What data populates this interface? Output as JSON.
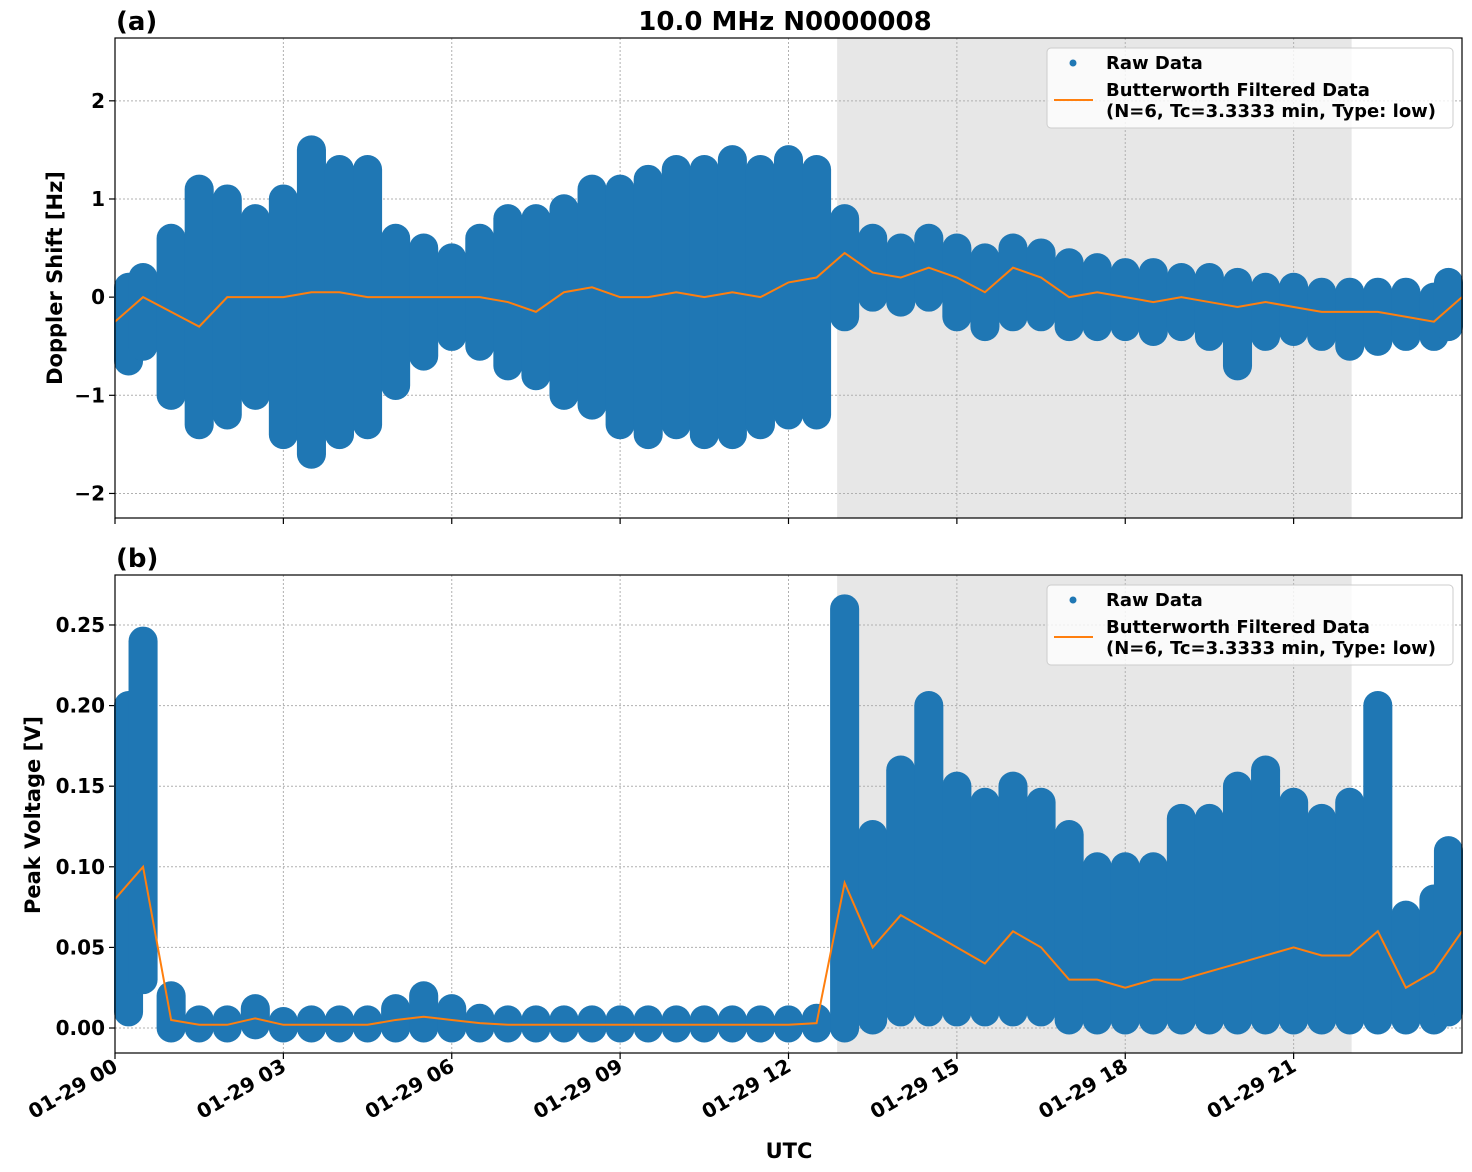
{
  "chart_data": [
    {
      "type": "scatter",
      "panel_label": "(a)",
      "title": "10.0 MHz N0000008",
      "xlabel": "",
      "ylabel": "Doppler Shift [Hz]",
      "ylim": [
        -2.25,
        2.64
      ],
      "yticks": [
        2,
        1,
        0,
        -1,
        -2
      ],
      "ytick_labels": [
        "2",
        "1",
        "0",
        "−1",
        "−2"
      ],
      "xlim": [
        "01-29 00:00",
        "01-30 00:00"
      ],
      "grid": true,
      "legend_placement": "top-right",
      "shaded_region": {
        "start": "12:52",
        "end": "22:02",
        "color": "#e7e7e7"
      },
      "series": [
        {
          "name": "Raw Data",
          "kind": "scatter",
          "color": "#1f77b4",
          "representation": "range per 30 min [min, max]",
          "x": [
            "00:00",
            "00:30",
            "01:00",
            "01:30",
            "02:00",
            "02:30",
            "03:00",
            "03:30",
            "04:00",
            "04:30",
            "05:00",
            "05:30",
            "06:00",
            "06:30",
            "07:00",
            "07:30",
            "08:00",
            "08:30",
            "09:00",
            "09:30",
            "10:00",
            "10:30",
            "11:00",
            "11:30",
            "12:00",
            "12:30",
            "13:00",
            "13:30",
            "14:00",
            "14:30",
            "15:00",
            "15:30",
            "16:00",
            "16:30",
            "17:00",
            "17:30",
            "18:00",
            "18:30",
            "19:00",
            "19:30",
            "20:00",
            "20:30",
            "21:00",
            "21:30",
            "22:00",
            "22:30",
            "23:00",
            "23:30",
            "24:00"
          ],
          "min": [
            -0.65,
            -0.5,
            -1.0,
            -1.3,
            -1.2,
            -1.0,
            -1.4,
            -1.6,
            -1.4,
            -1.3,
            -0.9,
            -0.6,
            -0.4,
            -0.5,
            -0.7,
            -0.8,
            -1.0,
            -1.1,
            -1.3,
            -1.4,
            -1.3,
            -1.4,
            -1.4,
            -1.3,
            -1.2,
            -1.2,
            -0.2,
            0.0,
            -0.05,
            0.0,
            -0.2,
            -0.3,
            -0.2,
            -0.2,
            -0.3,
            -0.3,
            -0.3,
            -0.35,
            -0.3,
            -0.4,
            -0.7,
            -0.4,
            -0.35,
            -0.4,
            -0.5,
            -0.45,
            -0.4,
            -0.4,
            -0.3
          ],
          "max": [
            0.1,
            0.2,
            0.6,
            1.1,
            1.0,
            0.8,
            1.0,
            1.5,
            1.3,
            1.3,
            0.6,
            0.5,
            0.4,
            0.6,
            0.8,
            0.8,
            0.9,
            1.1,
            1.1,
            1.2,
            1.3,
            1.3,
            1.4,
            1.3,
            1.4,
            1.3,
            0.8,
            0.6,
            0.5,
            0.6,
            0.5,
            0.4,
            0.5,
            0.45,
            0.35,
            0.3,
            0.25,
            0.25,
            0.2,
            0.2,
            0.15,
            0.1,
            0.1,
            0.05,
            0.05,
            0.05,
            0.05,
            0.0,
            0.15
          ]
        },
        {
          "name": "Butterworth Filtered Data\n(N=6, Tc=3.3333 min, Type: low)",
          "kind": "line",
          "color": "#ff7f0e",
          "x": [
            "00:00",
            "00:30",
            "01:00",
            "01:30",
            "02:00",
            "02:30",
            "03:00",
            "03:30",
            "04:00",
            "04:30",
            "05:00",
            "05:30",
            "06:00",
            "06:30",
            "07:00",
            "07:30",
            "08:00",
            "08:30",
            "09:00",
            "09:30",
            "10:00",
            "10:30",
            "11:00",
            "11:30",
            "12:00",
            "12:30",
            "13:00",
            "13:30",
            "14:00",
            "14:30",
            "15:00",
            "15:30",
            "16:00",
            "16:30",
            "17:00",
            "17:30",
            "18:00",
            "18:30",
            "19:00",
            "19:30",
            "20:00",
            "20:30",
            "21:00",
            "21:30",
            "22:00",
            "22:30",
            "23:00",
            "23:30",
            "24:00"
          ],
          "y": [
            -0.25,
            0.0,
            -0.15,
            -0.3,
            0.0,
            0.0,
            0.0,
            0.05,
            0.05,
            0.0,
            0.0,
            0.0,
            0.0,
            0.0,
            -0.05,
            -0.15,
            0.05,
            0.1,
            0.0,
            0.0,
            0.05,
            0.0,
            0.05,
            0.0,
            0.15,
            0.2,
            0.45,
            0.25,
            0.2,
            0.3,
            0.2,
            0.05,
            0.3,
            0.2,
            0.0,
            0.05,
            0.0,
            -0.05,
            0.0,
            -0.05,
            -0.1,
            -0.05,
            -0.1,
            -0.15,
            -0.15,
            -0.15,
            -0.2,
            -0.25,
            0.0
          ]
        }
      ],
      "legend": {
        "raw": "Raw Data",
        "filtered_line1": "Butterworth Filtered Data",
        "filtered_line2": "(N=6, Tc=3.3333 min, Type: low)"
      }
    },
    {
      "type": "scatter",
      "panel_label": "(b)",
      "xlabel": "UTC",
      "ylabel": "Peak Voltage [V]",
      "ylim": [
        -0.0155,
        0.281
      ],
      "yticks": [
        0.25,
        0.2,
        0.15,
        0.1,
        0.05,
        0.0
      ],
      "ytick_labels": [
        "0.25",
        "0.20",
        "0.15",
        "0.10",
        "0.05",
        "0.00"
      ],
      "xlim": [
        "01-29 00:00",
        "01-30 00:00"
      ],
      "xtick_labels": [
        "01-29 00",
        "01-29 03",
        "01-29 06",
        "01-29 09",
        "01-29 12",
        "01-29 15",
        "01-29 18",
        "01-29 21"
      ],
      "xtick_times": [
        "00:00",
        "03:00",
        "06:00",
        "09:00",
        "12:00",
        "15:00",
        "18:00",
        "21:00"
      ],
      "grid": true,
      "legend_placement": "top-right",
      "shaded_region": {
        "start": "12:52",
        "end": "22:02",
        "color": "#e7e7e7"
      },
      "series": [
        {
          "name": "Raw Data",
          "kind": "scatter",
          "color": "#1f77b4",
          "representation": "range per 30 min [min, max]",
          "x": [
            "00:00",
            "00:30",
            "01:00",
            "01:30",
            "02:00",
            "02:30",
            "03:00",
            "03:30",
            "04:00",
            "04:30",
            "05:00",
            "05:30",
            "06:00",
            "06:30",
            "07:00",
            "07:30",
            "08:00",
            "08:30",
            "09:00",
            "09:30",
            "10:00",
            "10:30",
            "11:00",
            "11:30",
            "12:00",
            "12:30",
            "13:00",
            "13:30",
            "14:00",
            "14:30",
            "15:00",
            "15:30",
            "16:00",
            "16:30",
            "17:00",
            "17:30",
            "18:00",
            "18:30",
            "19:00",
            "19:30",
            "20:00",
            "20:30",
            "21:00",
            "21:30",
            "22:00",
            "22:30",
            "23:00",
            "23:30",
            "24:00"
          ],
          "min": [
            0.01,
            0.03,
            0.0,
            0.0,
            0.0,
            0.002,
            0.0,
            0.0,
            0.0,
            0.0,
            0.0,
            0.0,
            0.0,
            0.0,
            0.0,
            0.0,
            0.0,
            0.0,
            0.0,
            0.0,
            0.0,
            0.0,
            0.0,
            0.0,
            0.0,
            0.0,
            0.0,
            0.005,
            0.01,
            0.01,
            0.01,
            0.01,
            0.01,
            0.01,
            0.005,
            0.005,
            0.005,
            0.005,
            0.005,
            0.005,
            0.005,
            0.005,
            0.005,
            0.005,
            0.005,
            0.005,
            0.005,
            0.005,
            0.01
          ],
          "max": [
            0.2,
            0.24,
            0.02,
            0.005,
            0.005,
            0.012,
            0.004,
            0.005,
            0.005,
            0.005,
            0.012,
            0.02,
            0.012,
            0.006,
            0.005,
            0.005,
            0.005,
            0.005,
            0.005,
            0.005,
            0.005,
            0.005,
            0.005,
            0.005,
            0.005,
            0.006,
            0.26,
            0.12,
            0.16,
            0.2,
            0.15,
            0.14,
            0.15,
            0.14,
            0.12,
            0.1,
            0.1,
            0.1,
            0.13,
            0.13,
            0.15,
            0.16,
            0.14,
            0.13,
            0.14,
            0.2,
            0.07,
            0.08,
            0.11
          ]
        },
        {
          "name": "Butterworth Filtered Data\n(N=6, Tc=3.3333 min, Type: low)",
          "kind": "line",
          "color": "#ff7f0e",
          "x": [
            "00:00",
            "00:30",
            "01:00",
            "01:30",
            "02:00",
            "02:30",
            "03:00",
            "03:30",
            "04:00",
            "04:30",
            "05:00",
            "05:30",
            "06:00",
            "06:30",
            "07:00",
            "07:30",
            "08:00",
            "08:30",
            "09:00",
            "09:30",
            "10:00",
            "10:30",
            "11:00",
            "11:30",
            "12:00",
            "12:30",
            "13:00",
            "13:30",
            "14:00",
            "14:30",
            "15:00",
            "15:30",
            "16:00",
            "16:30",
            "17:00",
            "17:30",
            "18:00",
            "18:30",
            "19:00",
            "19:30",
            "20:00",
            "20:30",
            "21:00",
            "21:30",
            "22:00",
            "22:30",
            "23:00",
            "23:30",
            "24:00"
          ],
          "y": [
            0.08,
            0.1,
            0.005,
            0.002,
            0.002,
            0.006,
            0.002,
            0.002,
            0.002,
            0.002,
            0.005,
            0.007,
            0.005,
            0.003,
            0.002,
            0.002,
            0.002,
            0.002,
            0.002,
            0.002,
            0.002,
            0.002,
            0.002,
            0.002,
            0.002,
            0.003,
            0.09,
            0.05,
            0.07,
            0.06,
            0.05,
            0.04,
            0.06,
            0.05,
            0.03,
            0.03,
            0.025,
            0.03,
            0.03,
            0.035,
            0.04,
            0.045,
            0.05,
            0.045,
            0.045,
            0.06,
            0.025,
            0.035,
            0.06
          ]
        }
      ],
      "legend": {
        "raw": "Raw Data",
        "filtered_line1": "Butterworth Filtered Data",
        "filtered_line2": "(N=6, Tc=3.3333 min, Type: low)"
      }
    }
  ]
}
